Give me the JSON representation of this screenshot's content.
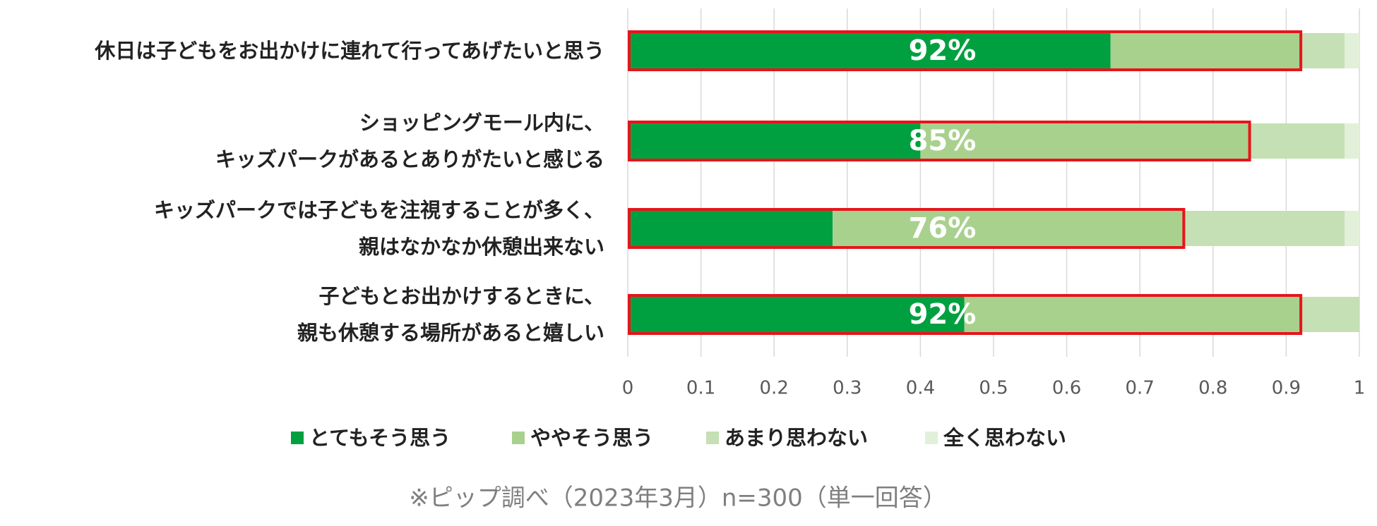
{
  "chart_data": {
    "type": "stacked-bar-horizontal",
    "categories": [
      "休日は子どもをお出かけに連れて行ってあげたいと思う",
      "ショッピングモール内に、\nキッズパークがあるとありがたいと感じる",
      "キッズパークでは子どもを注視することが多く、\n親はなかなか休憩出来ない",
      "子どもとお出かけするときに、\n親も休憩する場所があると嬉しい"
    ],
    "series": [
      {
        "name": "とてもそう思う",
        "color": "#00a040",
        "values": [
          0.66,
          0.4,
          0.28,
          0.46
        ]
      },
      {
        "name": "ややそう思う",
        "color": "#a9d18e",
        "values": [
          0.26,
          0.45,
          0.48,
          0.46
        ]
      },
      {
        "name": "あまり思わない",
        "color": "#c5e0b4",
        "values": [
          0.06,
          0.13,
          0.22,
          0.08
        ]
      },
      {
        "name": "全く思わない",
        "color": "#e2f0d9",
        "values": [
          0.02,
          0.02,
          0.02,
          0
        ]
      }
    ],
    "highlight_labels": [
      "92%",
      "85%",
      "76%",
      "92%"
    ],
    "highlight_color": "#e8141b",
    "xlim": [
      0,
      1
    ],
    "xticks": [
      0,
      0.1,
      0.2,
      0.3,
      0.4,
      0.5,
      0.6,
      0.7,
      0.8,
      0.9,
      1
    ],
    "grid": true,
    "note": "※ピップ調べ（2023年3月）n=300（単一回答）"
  }
}
